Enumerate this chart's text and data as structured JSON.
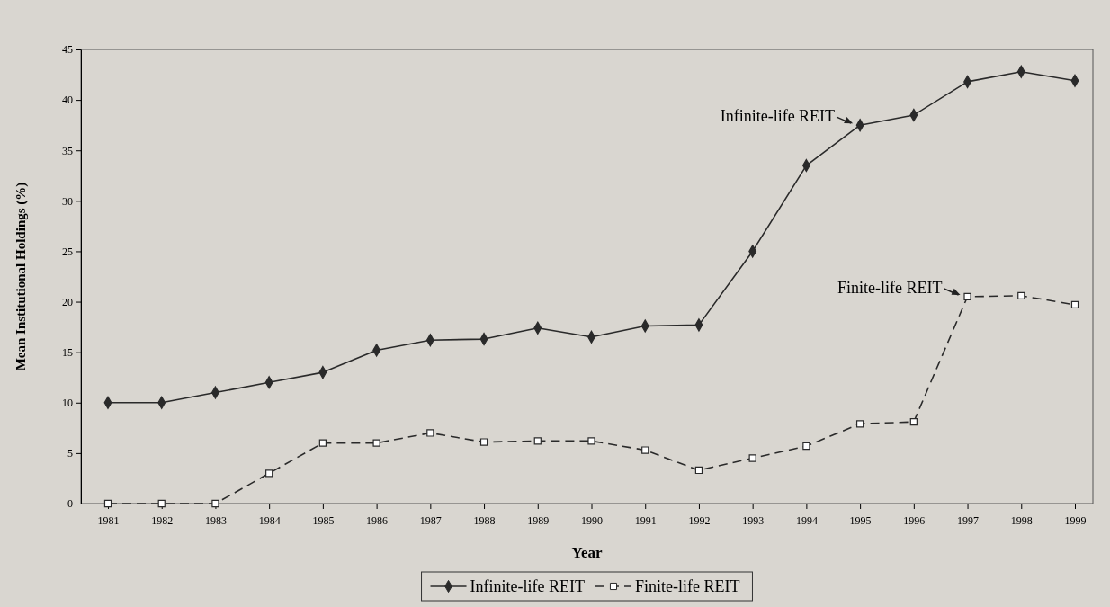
{
  "chart_data": {
    "type": "line",
    "xlabel": "Year",
    "ylabel": "Mean Institutional Holdings (%)",
    "categories": [
      "1981",
      "1982",
      "1983",
      "1984",
      "1985",
      "1986",
      "1987",
      "1988",
      "1989",
      "1990",
      "1991",
      "1992",
      "1993",
      "1994",
      "1995",
      "1996",
      "1997",
      "1998",
      "1999"
    ],
    "series": [
      {
        "name": "Infinite-life REIT",
        "color": "#2a2a2a",
        "marker": "diamond",
        "line_style": "solid",
        "values": [
          10,
          10,
          11,
          12,
          13,
          15.2,
          16.2,
          16.3,
          17.4,
          16.5,
          17.6,
          17.7,
          25,
          33.5,
          37.5,
          38.5,
          41.8,
          42.8,
          41.9
        ]
      },
      {
        "name": "Finite-life REIT",
        "color": "#2a2a2a",
        "marker": "square",
        "line_style": "dashed",
        "values": [
          0,
          0,
          0,
          3,
          6,
          6,
          7,
          6.1,
          6.2,
          6.2,
          5.3,
          3.3,
          4.5,
          5.7,
          7.9,
          8.1,
          20.5,
          20.6,
          19.7
        ]
      }
    ],
    "ylim": [
      0,
      45
    ],
    "yticks": [
      0,
      5,
      10,
      15,
      20,
      25,
      30,
      35,
      40,
      45
    ],
    "grid": false,
    "legend": "bottom",
    "annotations": [
      {
        "text": "Infinite-life REIT",
        "x": "1995",
        "y": 37.5
      },
      {
        "text": "Finite-life REIT",
        "x": "1997",
        "y": 20.5
      }
    ]
  }
}
